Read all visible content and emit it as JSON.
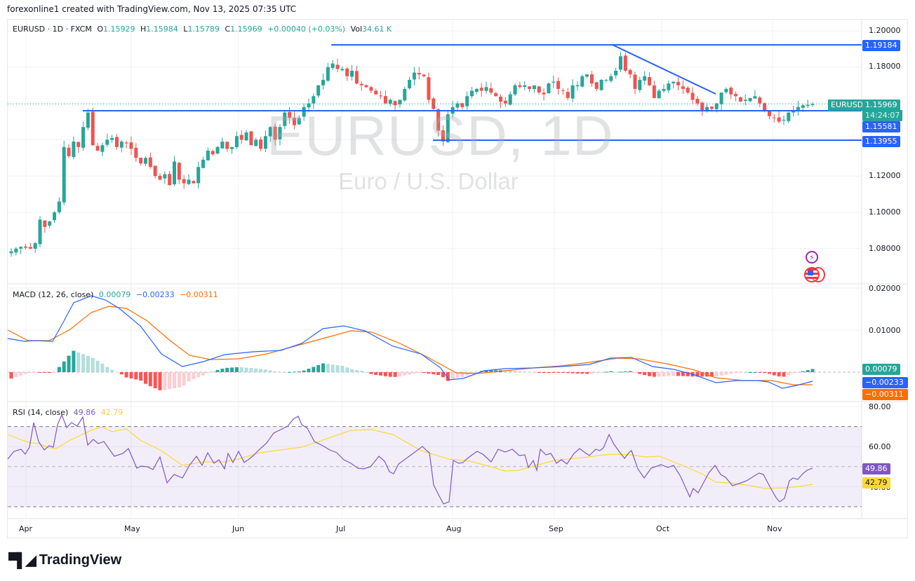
{
  "credit": "forexonline1 created with TradingView.com, Nov 13, 2025 07:35 UTC",
  "header": {
    "symbol": "EURUSD · 1D · FXCM",
    "o_label": "O",
    "o": "1.15929",
    "h_label": "H",
    "h": "1.15984",
    "l_label": "L",
    "l": "1.15789",
    "c_label": "C",
    "c": "1.15969",
    "change": "+0.00040 (+0.03%)",
    "vol_label": "Vol",
    "vol": "34.61 K"
  },
  "watermark": {
    "title": "EURUSD, 1D",
    "subtitle": "Euro / U.S. Dollar"
  },
  "price_axis": {
    "ticks": [
      "1.20000",
      "1.18000",
      "1.12000",
      "1.10000",
      "1.08000"
    ],
    "tags": {
      "resistance": "1.19184",
      "last": "1.15969",
      "countdown": "14:24:07",
      "support1": "1.15581",
      "support2": "1.13955"
    },
    "symbol_tag": "EURUSD"
  },
  "macd": {
    "label": "MACD (12, 26, close)",
    "hist": "0.00079",
    "macd": "−0.00233",
    "signal": "−0.00311",
    "ticks": [
      "0.02000",
      "0.01000"
    ]
  },
  "rsi": {
    "label": "RSI (14, close)",
    "rsi": "49.86",
    "ma": "42.79",
    "ticks": [
      "80.00",
      "60.00",
      "40.00"
    ]
  },
  "time_axis": [
    "Apr",
    "May",
    "Jun",
    "Jul",
    "Aug",
    "Sep",
    "Oct",
    "Nov"
  ],
  "icons": {
    "events": "lightning-icon",
    "economic": "us-flag-icon"
  },
  "logo": {
    "text": "TradingView"
  },
  "colors": {
    "up": "#26a69a",
    "down": "#ef5350",
    "lines": "#2962ff",
    "macd": "#2962ff",
    "signal": "#ff6d00",
    "rsi": "#7e57c2",
    "rsi_ma": "#fdd835"
  },
  "chart_data": {
    "type": "candlestick",
    "title": "EURUSD, 1D",
    "subtitle": "Euro / U.S. Dollar",
    "xlabel": "",
    "ylabel": "",
    "x_ticks": [
      "Apr",
      "May",
      "Jun",
      "Jul",
      "Aug",
      "Sep",
      "Oct",
      "Nov"
    ],
    "ylim": [
      1.07,
      1.205
    ],
    "horizontal_lines": [
      1.19184,
      1.15581,
      1.13955
    ],
    "trendline": {
      "from": [
        "Sep 17",
        1.1918
      ],
      "to": [
        "Oct 17",
        1.165
      ]
    },
    "closes_approx": [
      1.0785,
      1.08,
      1.081,
      1.0805,
      1.08,
      1.083,
      1.096,
      1.092,
      1.095,
      1.1,
      1.106,
      1.136,
      1.131,
      1.139,
      1.136,
      1.147,
      1.155,
      1.137,
      1.134,
      1.137,
      1.14,
      1.141,
      1.136,
      1.139,
      1.138,
      1.135,
      1.13,
      1.127,
      1.13,
      1.125,
      1.12,
      1.118,
      1.121,
      1.115,
      1.128,
      1.118,
      1.116,
      1.118,
      1.116,
      1.125,
      1.129,
      1.134,
      1.132,
      1.136,
      1.139,
      1.135,
      1.136,
      1.142,
      1.14,
      1.144,
      1.137,
      1.14,
      1.135,
      1.142,
      1.147,
      1.14,
      1.147,
      1.155,
      1.152,
      1.148,
      1.152,
      1.158,
      1.16,
      1.164,
      1.17,
      1.173,
      1.18,
      1.182,
      1.179,
      1.179,
      1.175,
      1.178,
      1.171,
      1.17,
      1.169,
      1.167,
      1.165,
      1.164,
      1.16,
      1.162,
      1.159,
      1.162,
      1.168,
      1.173,
      1.177,
      1.176,
      1.175,
      1.162,
      1.157,
      1.145,
      1.139,
      1.154,
      1.158,
      1.16,
      1.158,
      1.164,
      1.167,
      1.168,
      1.167,
      1.169,
      1.166,
      1.164,
      1.161,
      1.16,
      1.165,
      1.17,
      1.169,
      1.17,
      1.168,
      1.17,
      1.166,
      1.165,
      1.171,
      1.172,
      1.168,
      1.167,
      1.163,
      1.17,
      1.17,
      1.175,
      1.176,
      1.171,
      1.168,
      1.173,
      1.173,
      1.175,
      1.178,
      1.186,
      1.178,
      1.176,
      1.168,
      1.173,
      1.175,
      1.17,
      1.163,
      1.167,
      1.168,
      1.171,
      1.172,
      1.17,
      1.168,
      1.166,
      1.162,
      1.16,
      1.156,
      1.158,
      1.157,
      1.16,
      1.166,
      1.168,
      1.165,
      1.164,
      1.161,
      1.162,
      1.163,
      1.164,
      1.16,
      1.156,
      1.153,
      1.152,
      1.15,
      1.151,
      1.155,
      1.156,
      1.158,
      1.159,
      1.1593,
      1.1597
    ],
    "macd_latest": {
      "histogram": 0.00079,
      "macd": -0.00233,
      "signal": -0.00311
    },
    "rsi_latest": {
      "rsi": 49.86,
      "ma": 42.79
    },
    "rsi_levels": [
      70,
      50,
      30
    ]
  }
}
